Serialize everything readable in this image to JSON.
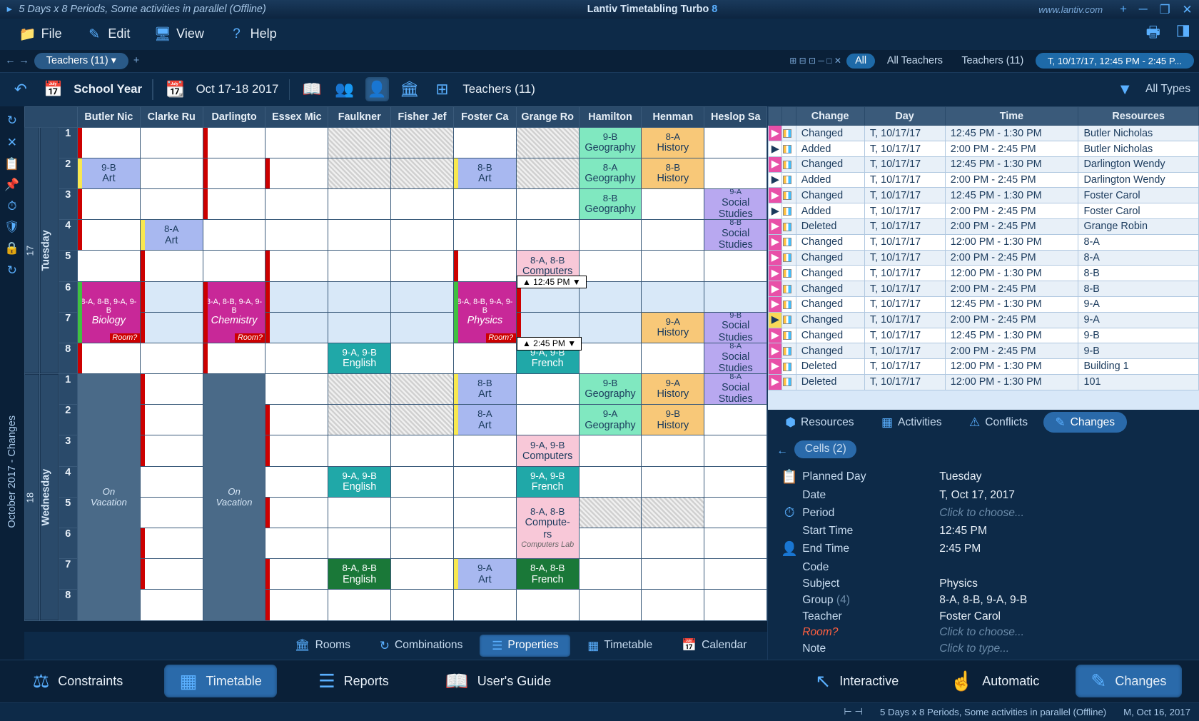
{
  "titlebar": {
    "doc_title": "5 Days x 8 Periods, Some activities in parallel (Offline)",
    "app_name": "Lantiv Timetabling Turbo",
    "app_version": "8",
    "url": "www.lantiv.com"
  },
  "menu": {
    "file": "File",
    "edit": "Edit",
    "view": "View",
    "help": "Help"
  },
  "tabstrip": {
    "main_tab": "Teachers (11)",
    "all_btn": "All",
    "all_teachers": "All Teachers",
    "teachers_tab": "Teachers (11)",
    "date_tab": "T, 10/17/17, 12:45 PM - 2:45 P..."
  },
  "toolbar": {
    "school_year": "School Year",
    "date_range": "Oct 17-18 2017",
    "view_label": "Teachers (11)",
    "all_types": "All Types"
  },
  "vert_label": "October 2017 - Changes",
  "teachers": [
    "Butler Nic",
    "Clarke Ru",
    "Darlingto",
    "Essex Mic",
    "Faulkner",
    "Fisher Jef",
    "Foster Ca",
    "Grange Ro",
    "Hamilton",
    "Henman",
    "Heslop Sa"
  ],
  "days": [
    {
      "date": "17",
      "name": "Tuesday",
      "periods": 8
    },
    {
      "date": "18",
      "name": "Wednesday",
      "periods": 8
    }
  ],
  "time_markers": {
    "t1": "12:45 PM",
    "t2": "2:45 PM"
  },
  "grid": {
    "17": {
      "1": {
        "8": {
          "cls": "c-geo",
          "grp": "9-B",
          "subj": "Geography"
        },
        "9": {
          "cls": "c-hist",
          "grp": "8-A",
          "subj": "History"
        }
      },
      "2": {
        "0": {
          "cls": "c-art with-tab",
          "grp": "9-B",
          "subj": "Art"
        },
        "6": {
          "cls": "c-art with-tab",
          "grp": "8-B",
          "subj": "Art"
        },
        "8": {
          "cls": "c-geo",
          "grp": "8-A",
          "subj": "Geography"
        },
        "9": {
          "cls": "c-hist",
          "grp": "8-B",
          "subj": "History"
        }
      },
      "3": {
        "8": {
          "cls": "c-geo",
          "grp": "8-B",
          "subj": "Geography"
        },
        "10": {
          "cls": "c-soc",
          "grp": "9-A",
          "subj": "Social Studies",
          "small": true
        }
      },
      "4": {
        "1": {
          "cls": "c-art with-tab",
          "grp": "8-A",
          "subj": "Art"
        },
        "10": {
          "cls": "c-soc",
          "grp": "8-B",
          "subj": "Social Studies",
          "small": true
        }
      },
      "5": {
        "7": {
          "cls": "c-comp",
          "grp": "8-A, 8-B",
          "subj": "Computers"
        }
      },
      "6": {
        "0": {
          "cls": "c-bio with-tab",
          "grp": "8-A, 8-B, 9-A, 9-B",
          "subj": "Biology",
          "room": true,
          "small": true,
          "span": 2
        },
        "2": {
          "cls": "c-chem with-tab",
          "grp": "8-A, 8-B, 9-A, 9-B",
          "subj": "Chemistry",
          "room": true,
          "small": true,
          "span": 2
        },
        "6": {
          "cls": "c-phys with-tab",
          "grp": "8-A, 8-B, 9-A, 9-B",
          "subj": "Physics",
          "room": true,
          "small": true,
          "span": 2
        }
      },
      "7": {
        "9": {
          "cls": "c-hist",
          "grp": "9-A",
          "subj": "History"
        },
        "10": {
          "cls": "c-soc",
          "grp": "9-B",
          "subj": "Social Studies",
          "small": true
        }
      },
      "8": {
        "4": {
          "cls": "c-eng",
          "grp": "9-A, 9-B",
          "subj": "English"
        },
        "7": {
          "cls": "c-fre",
          "grp": "9-A, 9-B",
          "subj": "French"
        },
        "10": {
          "cls": "c-soc",
          "grp": "8-A",
          "subj": "Social Studies",
          "small": true
        }
      }
    },
    "18": {
      "1": {
        "6": {
          "cls": "c-art c-yeltab",
          "grp": "8-B",
          "subj": "Art"
        },
        "8": {
          "cls": "c-geo",
          "grp": "9-B",
          "subj": "Geography"
        },
        "9": {
          "cls": "c-hist",
          "grp": "9-A",
          "subj": "History"
        },
        "10": {
          "cls": "c-soc",
          "grp": "8-A",
          "subj": "Social Studies",
          "small": true
        }
      },
      "2": {
        "6": {
          "cls": "c-art c-yeltab",
          "grp": "8-A",
          "subj": "Art"
        },
        "8": {
          "cls": "c-geo",
          "grp": "9-A",
          "subj": "Geography"
        },
        "9": {
          "cls": "c-hist",
          "grp": "9-B",
          "subj": "History"
        }
      },
      "3": {
        "7": {
          "cls": "c-comp",
          "grp": "9-A, 9-B",
          "subj": "Computers"
        }
      },
      "4": {
        "4": {
          "cls": "c-eng",
          "grp": "9-A, 9-B",
          "subj": "English"
        },
        "7": {
          "cls": "c-fre",
          "grp": "9-A, 9-B",
          "subj": "French"
        }
      },
      "5": {
        "7": {
          "cls": "c-comp",
          "grp": "8-A, 8-B",
          "subj": "Compute-\nrs",
          "lab": "Computers Lab",
          "span": 2
        }
      },
      "6": {},
      "7": {
        "4": {
          "cls": "c-eng-dark",
          "grp": "8-A, 8-B",
          "subj": "English"
        },
        "6": {
          "cls": "c-art with-tab",
          "grp": "9-A",
          "subj": "Art"
        },
        "7": {
          "cls": "c-fre-dark",
          "grp": "8-A, 8-B",
          "subj": "French"
        }
      },
      "8": {}
    }
  },
  "vacation_cols_18": {
    "0": true,
    "2": true
  },
  "vacation_label": "On Vacation",
  "redtabs": {
    "17": {
      "1": {
        "0": 1,
        "2": 1
      },
      "2": {
        "2": 1,
        "3": 1,
        "6": 1
      },
      "3": {
        "0": 1,
        "2": 1
      },
      "4": {
        "0": 1,
        "1": 1
      },
      "5": {
        "1": 1,
        "3": 1,
        "6": 1
      },
      "6": {
        "1": 1,
        "3": 1,
        "7": 1
      },
      "7": {
        "1": 1,
        "3": 1,
        "6": 1,
        "7": 1
      },
      "8": {
        "0": 1,
        "2": 1
      }
    },
    "18": {
      "1": {
        "1": 1
      },
      "2": {
        "1": 1,
        "3": 1
      },
      "3": {
        "1": 1,
        "3": 1
      },
      "5": {
        "3": 1
      },
      "6": {
        "1": 1
      },
      "7": {
        "1": 1,
        "3": 1
      },
      "8": {
        "3": 1
      }
    }
  },
  "changes_table": {
    "headers": [
      "Change",
      "Day",
      "Time",
      "Resources"
    ],
    "rows": [
      {
        "m": "pink",
        "icon": "sq",
        "change": "Changed",
        "day": "T, 10/17/17",
        "time": "12:45 PM - 1:30 PM",
        "res": "Butler Nicholas"
      },
      {
        "m": "play",
        "icon": "sq",
        "change": "Added",
        "day": "T, 10/17/17",
        "time": "2:00 PM - 2:45 PM",
        "res": "Butler Nicholas"
      },
      {
        "m": "pink",
        "icon": "sq",
        "change": "Changed",
        "day": "T, 10/17/17",
        "time": "12:45 PM - 1:30 PM",
        "res": "Darlington Wendy"
      },
      {
        "m": "play",
        "icon": "sq",
        "change": "Added",
        "day": "T, 10/17/17",
        "time": "2:00 PM - 2:45 PM",
        "res": "Darlington Wendy"
      },
      {
        "m": "pink",
        "icon": "sq",
        "change": "Changed",
        "day": "T, 10/17/17",
        "time": "12:45 PM - 1:30 PM",
        "res": "Foster Carol"
      },
      {
        "m": "play",
        "icon": "sq",
        "change": "Added",
        "day": "T, 10/17/17",
        "time": "2:00 PM - 2:45 PM",
        "res": "Foster Carol"
      },
      {
        "m": "pink",
        "icon": "del",
        "change": "Deleted",
        "day": "T, 10/17/17",
        "time": "2:00 PM - 2:45 PM",
        "res": "Grange Robin"
      },
      {
        "m": "pink",
        "icon": "sq",
        "change": "Changed",
        "day": "T, 10/17/17",
        "time": "12:00 PM - 1:30 PM",
        "res": "8-A"
      },
      {
        "m": "pink",
        "icon": "sq",
        "change": "Changed",
        "day": "T, 10/17/17",
        "time": "2:00 PM - 2:45 PM",
        "res": "8-A"
      },
      {
        "m": "pink",
        "icon": "sq",
        "change": "Changed",
        "day": "T, 10/17/17",
        "time": "12:00 PM - 1:30 PM",
        "res": "8-B"
      },
      {
        "m": "pink",
        "icon": "sq",
        "change": "Changed",
        "day": "T, 10/17/17",
        "time": "2:00 PM - 2:45 PM",
        "res": "8-B"
      },
      {
        "m": "pink",
        "icon": "sq",
        "change": "Changed",
        "day": "T, 10/17/17",
        "time": "12:45 PM - 1:30 PM",
        "res": "9-A"
      },
      {
        "m": "yellow",
        "icon": "sq",
        "change": "Changed",
        "day": "T, 10/17/17",
        "time": "2:00 PM - 2:45 PM",
        "res": "9-A"
      },
      {
        "m": "pink",
        "icon": "sq",
        "change": "Changed",
        "day": "T, 10/17/17",
        "time": "12:45 PM - 1:30 PM",
        "res": "9-B"
      },
      {
        "m": "pink",
        "icon": "sq",
        "change": "Changed",
        "day": "T, 10/17/17",
        "time": "2:00 PM - 2:45 PM",
        "res": "9-B"
      },
      {
        "m": "pink",
        "icon": "del",
        "change": "Deleted",
        "day": "T, 10/17/17",
        "time": "12:00 PM - 1:30 PM",
        "res": "Building 1"
      },
      {
        "m": "pink",
        "icon": "del",
        "change": "Deleted",
        "day": "T, 10/17/17",
        "time": "12:00 PM - 1:30 PM",
        "res": "101"
      }
    ]
  },
  "right_tabs": {
    "resources": "Resources",
    "activities": "Activities",
    "conflicts": "Conflicts",
    "changes": "Changes"
  },
  "properties": {
    "header": "Cells (2)",
    "rows": [
      {
        "icon": "📋",
        "label": "Planned Day",
        "value": "Tuesday"
      },
      {
        "icon": "",
        "label": "Date",
        "value": "T, Oct 17, 2017"
      },
      {
        "icon": "⏱",
        "label": "Period",
        "value": "Click to choose...",
        "hint": true
      },
      {
        "icon": "",
        "label": "Start Time",
        "value": "12:45 PM"
      },
      {
        "icon": "👤",
        "label": "End Time",
        "value": "2:45 PM"
      },
      {
        "icon": "",
        "label": "Code",
        "value": ""
      },
      {
        "icon": "",
        "label": "Subject",
        "value": "Physics"
      },
      {
        "icon": "",
        "label": "Group",
        "dim": "(4)",
        "value": "8-A, 8-B, 9-A, 9-B"
      },
      {
        "icon": "",
        "label": "Teacher",
        "value": "Foster Carol"
      },
      {
        "icon": "",
        "label": "Room?",
        "warn": true,
        "value": "Click to choose...",
        "hint": true
      },
      {
        "icon": "",
        "label": "Note",
        "value": "Click to type...",
        "hint": true
      }
    ]
  },
  "bottom_tabs": {
    "rooms": "Rooms",
    "combinations": "Combinations",
    "properties": "Properties",
    "timetable": "Timetable",
    "calendar": "Calendar"
  },
  "footer": {
    "constraints": "Constraints",
    "timetable": "Timetable",
    "reports": "Reports",
    "guide": "User's Guide",
    "interactive": "Interactive",
    "automatic": "Automatic",
    "changes": "Changes"
  },
  "status": {
    "text": "5 Days x 8 Periods, Some activities in parallel (Offline)",
    "date": "M, Oct 16, 2017"
  },
  "room_label": "Room?"
}
